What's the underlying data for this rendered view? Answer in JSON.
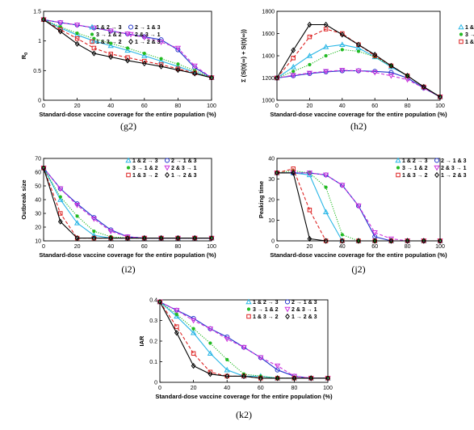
{
  "chart_data": [
    {
      "type": "line",
      "caption": "(g2)",
      "xlabel": "Standard-dose vaccine coverage for the entire population (%)",
      "ylabel": "R0",
      "xlim": [
        0,
        100
      ],
      "ylim": [
        0,
        1.5
      ],
      "xticks": [
        0,
        20,
        40,
        60,
        80,
        100
      ],
      "yticks": [
        0,
        0.5,
        1,
        1.5
      ],
      "ytick_labels": [
        "0",
        "0.5",
        "1",
        "1.5"
      ],
      "x": [
        0,
        10,
        20,
        30,
        40,
        50,
        60,
        70,
        80,
        90,
        100
      ],
      "series": [
        {
          "name": "1 & 2 → 3",
          "values": [
            1.36,
            1.22,
            1.1,
            1.0,
            0.92,
            0.84,
            0.75,
            0.66,
            0.57,
            0.47,
            0.38
          ]
        },
        {
          "name": "2 → 1 & 3",
          "values": [
            1.36,
            1.31,
            1.27,
            1.22,
            1.17,
            1.12,
            1.07,
            1.02,
            0.85,
            0.55,
            0.38
          ]
        },
        {
          "name": "3 → 1 & 2",
          "values": [
            1.36,
            1.24,
            1.13,
            1.04,
            0.96,
            0.88,
            0.79,
            0.7,
            0.61,
            0.5,
            0.38
          ]
        },
        {
          "name": "2 & 3 → 1",
          "values": [
            1.36,
            1.31,
            1.27,
            1.22,
            1.17,
            1.12,
            1.06,
            0.98,
            0.88,
            0.58,
            0.38
          ]
        },
        {
          "name": "1 & 3 → 2",
          "values": [
            1.36,
            1.19,
            1.04,
            0.88,
            0.78,
            0.72,
            0.66,
            0.6,
            0.53,
            0.46,
            0.38
          ]
        },
        {
          "name": "1 → 2 & 3",
          "values": [
            1.36,
            1.16,
            0.95,
            0.79,
            0.73,
            0.67,
            0.62,
            0.57,
            0.51,
            0.45,
            0.38
          ]
        }
      ]
    },
    {
      "type": "line",
      "caption": "(h2)",
      "xlabel": "Standard-dose vaccine coverage for the entire population (%)",
      "ylabel": "Σ (S(t)(∞) + S(t)(∞))",
      "xlim": [
        0,
        100
      ],
      "ylim": [
        1000,
        1800
      ],
      "xticks": [
        0,
        20,
        40,
        60,
        80,
        100
      ],
      "yticks": [
        1000,
        1200,
        1400,
        1600,
        1800
      ],
      "ytick_labels": [
        "1000",
        "1200",
        "1400",
        "1600",
        "1800"
      ],
      "x": [
        0,
        10,
        20,
        30,
        40,
        50,
        60,
        70,
        80,
        90,
        100
      ],
      "series": [
        {
          "name": "1 & 2 → 3",
          "values": [
            1200,
            1300,
            1400,
            1480,
            1500,
            1470,
            1390,
            1300,
            1220,
            1120,
            1030
          ]
        },
        {
          "name": "2 → 1 & 3",
          "values": [
            1200,
            1220,
            1240,
            1255,
            1265,
            1265,
            1260,
            1250,
            1200,
            1110,
            1030
          ]
        },
        {
          "name": "3 → 1 & 2",
          "values": [
            1200,
            1260,
            1320,
            1400,
            1455,
            1440,
            1390,
            1310,
            1220,
            1120,
            1030
          ]
        },
        {
          "name": "2 & 3 → 1",
          "values": [
            1200,
            1225,
            1245,
            1260,
            1270,
            1265,
            1250,
            1220,
            1185,
            1110,
            1030
          ]
        },
        {
          "name": "1 & 3 → 2",
          "values": [
            1200,
            1380,
            1570,
            1640,
            1600,
            1500,
            1400,
            1310,
            1220,
            1120,
            1030
          ]
        },
        {
          "name": "1 → 2 & 3",
          "values": [
            1200,
            1450,
            1680,
            1680,
            1590,
            1500,
            1410,
            1310,
            1220,
            1120,
            1030
          ]
        }
      ]
    },
    {
      "type": "line",
      "caption": "(i2)",
      "xlabel": "Standard-dose vaccine coverage for the entire population (%)",
      "ylabel": "Outbreak size",
      "xlim": [
        0,
        100
      ],
      "ylim": [
        10,
        70
      ],
      "xticks": [
        0,
        20,
        40,
        60,
        80,
        100
      ],
      "yticks": [
        10,
        20,
        30,
        40,
        50,
        60,
        70
      ],
      "ytick_labels": [
        "10",
        "20",
        "30",
        "40",
        "50",
        "60",
        "70"
      ],
      "x": [
        0,
        10,
        20,
        30,
        40,
        50,
        60,
        70,
        80,
        90,
        100
      ],
      "series": [
        {
          "name": "1 & 2 → 3",
          "values": [
            63,
            40,
            23,
            14,
            12,
            12,
            12,
            12,
            12,
            12,
            12
          ]
        },
        {
          "name": "2 → 1 & 3",
          "values": [
            63,
            48,
            37,
            27,
            18,
            13,
            12,
            12,
            12,
            12,
            12
          ]
        },
        {
          "name": "3 → 1 & 2",
          "values": [
            63,
            42,
            28,
            17,
            13,
            12,
            12,
            12,
            12,
            12,
            12
          ]
        },
        {
          "name": "2 & 3 → 1",
          "values": [
            63,
            48,
            36,
            26,
            17,
            13,
            12,
            12,
            12,
            12,
            12
          ]
        },
        {
          "name": "1 & 3 → 2",
          "values": [
            63,
            30,
            12,
            12,
            12,
            12,
            12,
            12,
            12,
            12,
            12
          ]
        },
        {
          "name": "1 → 2 & 3",
          "values": [
            63,
            24,
            12,
            12,
            12,
            12,
            12,
            12,
            12,
            12,
            12
          ]
        }
      ]
    },
    {
      "type": "line",
      "caption": "(j2)",
      "xlabel": "Standard-dose vaccine coverage for the entire population (%)",
      "ylabel": "Peaking time",
      "xlim": [
        0,
        100
      ],
      "ylim": [
        0,
        40
      ],
      "xticks": [
        0,
        20,
        40,
        60,
        80,
        100
      ],
      "yticks": [
        0,
        10,
        20,
        30,
        40
      ],
      "ytick_labels": [
        "0",
        "10",
        "20",
        "30",
        "40"
      ],
      "x": [
        0,
        10,
        20,
        30,
        40,
        50,
        60,
        70,
        80,
        90,
        100
      ],
      "series": [
        {
          "name": "1 & 2 → 3",
          "values": [
            33,
            33,
            32,
            14,
            0,
            0,
            0,
            0,
            0,
            0,
            0
          ]
        },
        {
          "name": "2 → 1 & 3",
          "values": [
            33,
            33,
            33,
            32,
            27,
            17,
            2,
            0,
            0,
            0,
            0
          ]
        },
        {
          "name": "3 → 1 & 2",
          "values": [
            33,
            34,
            33,
            26,
            3,
            0,
            0,
            0,
            0,
            0,
            0
          ]
        },
        {
          "name": "2 & 3 → 1",
          "values": [
            33,
            33,
            33,
            32,
            27,
            17,
            4,
            1,
            0,
            0,
            0
          ]
        },
        {
          "name": "1 & 3 → 2",
          "values": [
            33,
            35,
            15,
            0,
            0,
            0,
            0,
            0,
            0,
            0,
            0
          ]
        },
        {
          "name": "1 → 2 & 3",
          "values": [
            33,
            33,
            1,
            0,
            0,
            0,
            0,
            0,
            0,
            0,
            0
          ]
        }
      ]
    },
    {
      "type": "line",
      "caption": "(k2)",
      "xlabel": "Standard-dose vaccine coverage for the entire population (%)",
      "ylabel": "IAR",
      "xlim": [
        0,
        100
      ],
      "ylim": [
        0,
        0.4
      ],
      "xticks": [
        0,
        20,
        40,
        60,
        80,
        100
      ],
      "yticks": [
        0,
        0.1,
        0.2,
        0.3,
        0.4
      ],
      "ytick_labels": [
        "0",
        "0.1",
        "0.2",
        "0.3",
        "0.4"
      ],
      "x": [
        0,
        10,
        20,
        30,
        40,
        50,
        60,
        70,
        80,
        90,
        100
      ],
      "series": [
        {
          "name": "1 & 2 → 3",
          "values": [
            0.39,
            0.32,
            0.24,
            0.14,
            0.06,
            0.03,
            0.03,
            0.02,
            0.02,
            0.02,
            0.02
          ]
        },
        {
          "name": "2 → 1 & 3",
          "values": [
            0.39,
            0.35,
            0.31,
            0.26,
            0.22,
            0.17,
            0.12,
            0.06,
            0.03,
            0.02,
            0.02
          ]
        },
        {
          "name": "3 → 1 & 2",
          "values": [
            0.39,
            0.33,
            0.26,
            0.19,
            0.11,
            0.04,
            0.03,
            0.02,
            0.02,
            0.02,
            0.02
          ]
        },
        {
          "name": "2 & 3 → 1",
          "values": [
            0.39,
            0.35,
            0.3,
            0.26,
            0.21,
            0.17,
            0.12,
            0.08,
            0.03,
            0.02,
            0.02
          ]
        },
        {
          "name": "1 & 3 → 2",
          "values": [
            0.39,
            0.27,
            0.14,
            0.05,
            0.03,
            0.03,
            0.02,
            0.02,
            0.02,
            0.02,
            0.02
          ]
        },
        {
          "name": "1 → 2 & 3",
          "values": [
            0.39,
            0.24,
            0.08,
            0.04,
            0.03,
            0.03,
            0.02,
            0.02,
            0.02,
            0.02,
            0.02
          ]
        }
      ]
    }
  ],
  "series_styles": [
    {
      "color": "#29b6e6",
      "marker": "triangle-up",
      "dash": "solid"
    },
    {
      "color": "#2233cc",
      "marker": "circle",
      "dash": "solid"
    },
    {
      "color": "#22bb22",
      "marker": "dot",
      "dash": "dotted"
    },
    {
      "color": "#cc33dd",
      "marker": "triangle-down",
      "dash": "dashed"
    },
    {
      "color": "#dd2222",
      "marker": "square",
      "dash": "dashed"
    },
    {
      "color": "#000000",
      "marker": "diamond",
      "dash": "solid"
    }
  ],
  "legend": {
    "rows": [
      [
        {
          "series": 0,
          "label": "1 & 2 → 3"
        },
        {
          "series": 1,
          "label": "2 → 1 & 3"
        }
      ],
      [
        {
          "series": 2,
          "label": "3 → 1 & 2"
        },
        {
          "series": 3,
          "label": "2 & 3 → 1"
        }
      ],
      [
        {
          "series": 4,
          "label": "1 & 3 → 2"
        },
        {
          "series": 5,
          "label": "1 → 2 & 3"
        }
      ]
    ]
  }
}
